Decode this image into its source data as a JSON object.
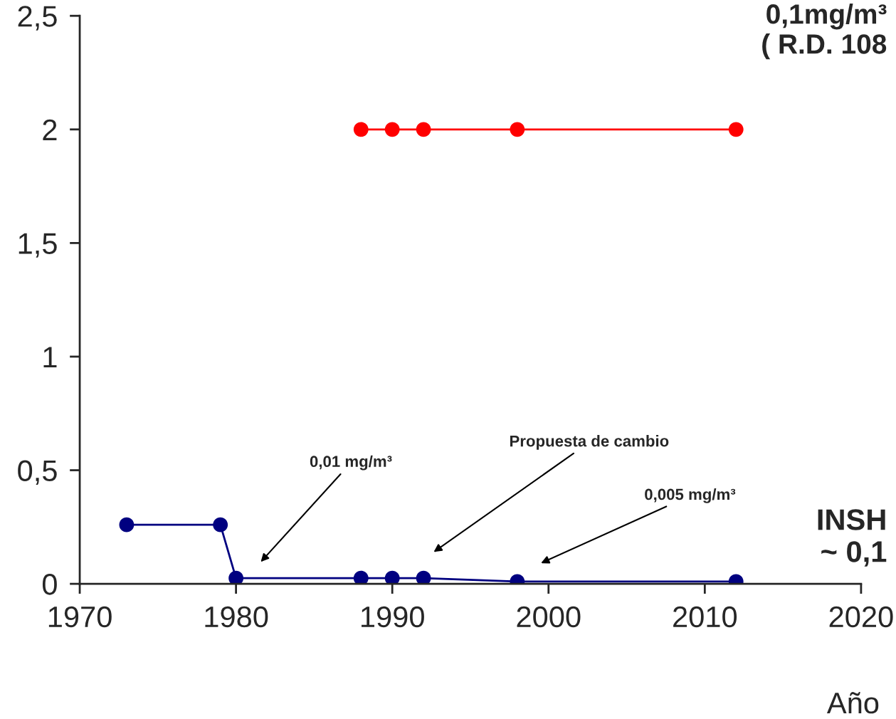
{
  "chart_data": {
    "type": "line",
    "xlabel": "Año",
    "x": [
      1973,
      1979,
      1980,
      1988,
      1990,
      1992,
      1998,
      2012
    ],
    "series": [
      {
        "color": "#000080",
        "values": [
          0.26,
          0.26,
          0.025,
          0.025,
          0.025,
          0.025,
          0.01,
          0.01
        ]
      },
      {
        "color": "#ff0000",
        "x": [
          1988,
          1990,
          1992,
          1998,
          2012
        ],
        "values": [
          2,
          2,
          2,
          2,
          2
        ]
      }
    ],
    "xlim": [
      1970,
      2020
    ],
    "ylim": [
      0,
      2.5
    ],
    "xticks": [
      1970,
      1980,
      1990,
      2000,
      2010,
      2020
    ],
    "yticks": [
      {
        "value": 0,
        "label": "0"
      },
      {
        "value": 0.5,
        "label": "0,5"
      },
      {
        "value": 1,
        "label": "1"
      },
      {
        "value": 1.5,
        "label": "1,5"
      },
      {
        "value": 2,
        "label": "2"
      },
      {
        "value": 2.5,
        "label": "2,5"
      }
    ],
    "marker": "circle",
    "line_style": "solid",
    "grid": false,
    "legend": false,
    "annotations": [
      "0,01 mg/m³",
      "Propuesta de cambio",
      "0,005 mg/m³",
      "0,1mg/m³\n( R.D. 108",
      "INSH\n~ 0,1"
    ]
  }
}
